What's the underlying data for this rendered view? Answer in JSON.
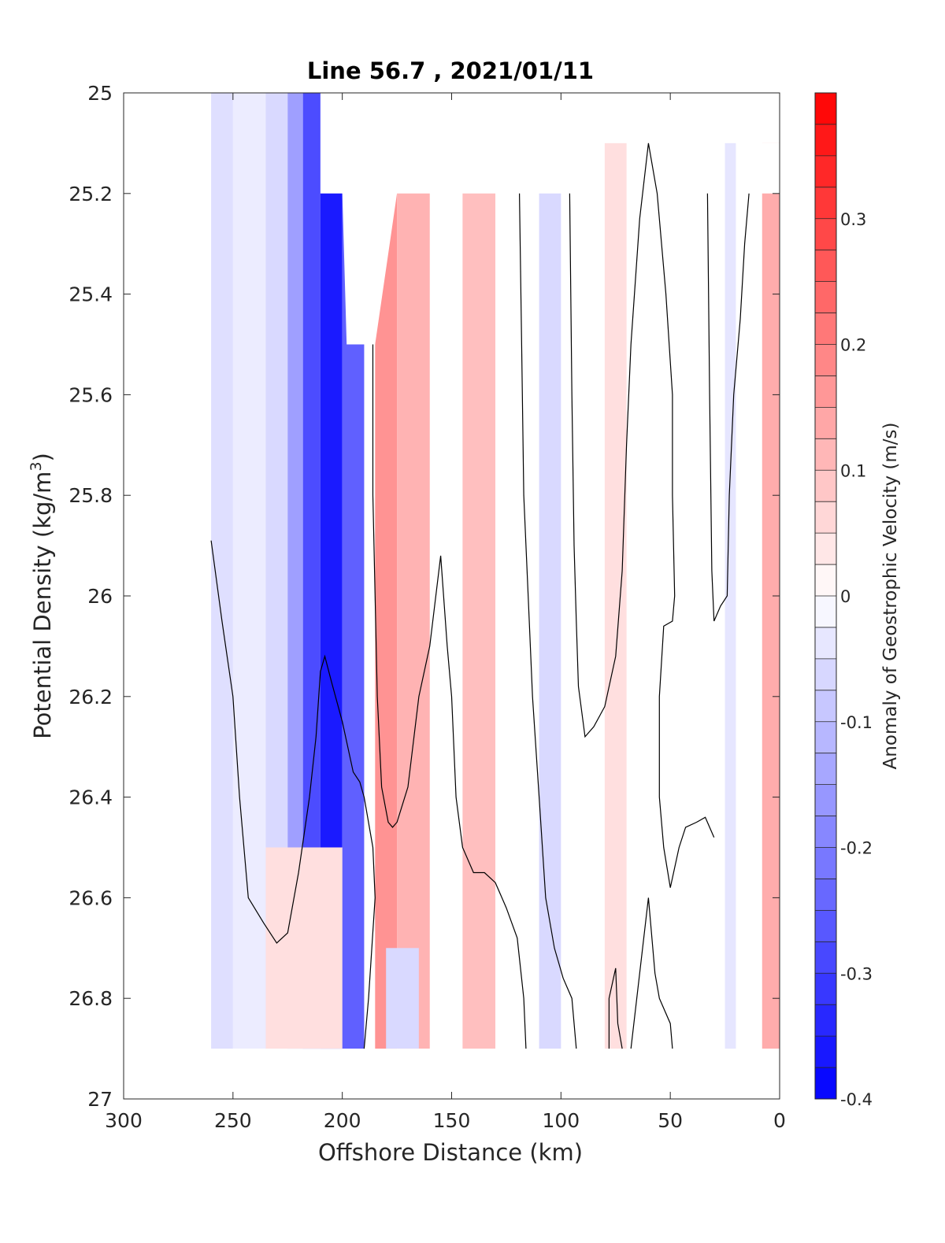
{
  "chart_data": {
    "type": "contour",
    "title": "Line 56.7 , 2021/01/11",
    "xlabel": "Offshore Distance (km)",
    "ylabel": "Potential Density (kg/m",
    "ylabel_sup": "3",
    "ylabel_close": ")",
    "colorbar_label": "Anomaly of Geostrophic Velocity (m/s)",
    "xlim": [
      300,
      0
    ],
    "ylim": [
      25,
      27
    ],
    "y_reversed": true,
    "x_reversed": true,
    "grid": false,
    "x_ticks": [
      300,
      250,
      200,
      150,
      100,
      50,
      0
    ],
    "x_tick_labels": [
      "300",
      "250",
      "200",
      "150",
      "100",
      "50",
      "0"
    ],
    "y_ticks": [
      25,
      25.2,
      25.4,
      25.6,
      25.8,
      26,
      26.2,
      26.4,
      26.6,
      26.8,
      27
    ],
    "y_tick_labels": [
      "25",
      "25.2",
      "25.4",
      "25.6",
      "25.8",
      "26",
      "26.2",
      "26.4",
      "26.6",
      "26.8",
      "27"
    ],
    "colorbar": {
      "clim": [
        -0.4,
        0.4
      ],
      "step": 0.025,
      "ticks": [
        -0.4,
        -0.3,
        -0.2,
        -0.1,
        0,
        0.1,
        0.2,
        0.3
      ],
      "tick_labels": [
        "-0.4",
        "-0.3",
        "-0.2",
        "-0.1",
        "0",
        "0.1",
        "0.2",
        "0.3"
      ],
      "negative_color": "#0000ff",
      "zero_color": "#ffffff",
      "positive_color": "#ff0000"
    },
    "velocity_bands": [
      {
        "x_range": [
          260,
          250
        ],
        "v": -0.05
      },
      {
        "x_range": [
          250,
          235
        ],
        "v": -0.03
      },
      {
        "x_range": [
          235,
          225
        ],
        "v": -0.06
      },
      {
        "x_range": [
          225,
          218
        ],
        "v": -0.15
      },
      {
        "x_range": [
          218,
          210
        ],
        "v": -0.28
      },
      {
        "x_range": [
          210,
          200
        ],
        "v": -0.36
      },
      {
        "x_range": [
          200,
          190
        ],
        "v": -0.25
      },
      {
        "x_range": [
          185,
          175
        ],
        "v": 0.17
      },
      {
        "x_range": [
          175,
          160
        ],
        "v": 0.12
      },
      {
        "x_range": [
          145,
          130
        ],
        "v": 0.1
      },
      {
        "x_range": [
          110,
          100
        ],
        "v": -0.06
      },
      {
        "x_range": [
          80,
          70
        ],
        "v": 0.05
      },
      {
        "x_range": [
          25,
          20
        ],
        "v": -0.04
      },
      {
        "x_range": [
          8,
          0
        ],
        "v": 0.13
      },
      {
        "x_range": [
          235,
          200
        ],
        "v": 0.05,
        "y_range": [
          26.5,
          26.9
        ]
      },
      {
        "x_range": [
          180,
          165
        ],
        "v": -0.06,
        "y_range": [
          26.7,
          26.9
        ]
      }
    ],
    "zero_contours": [
      [
        [
          260,
          25.89
        ],
        [
          255,
          26.05
        ],
        [
          250,
          26.2
        ],
        [
          247,
          26.4
        ],
        [
          243,
          26.6
        ],
        [
          236,
          26.65
        ],
        [
          230,
          26.69
        ],
        [
          225,
          26.67
        ],
        [
          220,
          26.55
        ],
        [
          215,
          26.4
        ],
        [
          212,
          26.28
        ],
        [
          210,
          26.15
        ],
        [
          208,
          26.12
        ],
        [
          205,
          26.17
        ],
        [
          200,
          26.25
        ],
        [
          195,
          26.35
        ],
        [
          192,
          26.37
        ],
        [
          190,
          26.4
        ],
        [
          186,
          26.5
        ],
        [
          185,
          26.6
        ],
        [
          188,
          26.8
        ],
        [
          190,
          26.9
        ]
      ],
      [
        [
          186,
          25.5
        ],
        [
          186,
          25.8
        ],
        [
          185,
          26.0
        ],
        [
          184,
          26.2
        ],
        [
          182,
          26.38
        ],
        [
          179,
          26.45
        ],
        [
          177,
          26.46
        ],
        [
          175,
          26.45
        ],
        [
          170,
          26.38
        ],
        [
          165,
          26.2
        ],
        [
          160,
          26.1
        ],
        [
          155,
          25.92
        ],
        [
          152,
          26.1
        ],
        [
          150,
          26.2
        ],
        [
          148,
          26.4
        ],
        [
          145,
          26.5
        ],
        [
          140,
          26.55
        ],
        [
          135,
          26.55
        ],
        [
          130,
          26.57
        ],
        [
          125,
          26.62
        ],
        [
          120,
          26.68
        ],
        [
          117,
          26.8
        ],
        [
          116,
          26.9
        ]
      ],
      [
        [
          119,
          25.2
        ],
        [
          118,
          25.5
        ],
        [
          117,
          25.8
        ],
        [
          115,
          26.0
        ],
        [
          113,
          26.2
        ],
        [
          110,
          26.4
        ],
        [
          107,
          26.6
        ],
        [
          103,
          26.7
        ],
        [
          99,
          26.76
        ],
        [
          95,
          26.8
        ],
        [
          93,
          26.9
        ]
      ],
      [
        [
          96,
          25.2
        ],
        [
          95,
          25.6
        ],
        [
          94,
          25.9
        ],
        [
          93,
          26.05
        ],
        [
          92,
          26.18
        ],
        [
          89,
          26.28
        ],
        [
          85,
          26.26
        ],
        [
          80,
          26.22
        ],
        [
          75,
          26.12
        ],
        [
          72,
          25.95
        ],
        [
          70,
          25.7
        ],
        [
          68,
          25.5
        ],
        [
          64,
          25.25
        ],
        [
          60,
          25.1
        ],
        [
          56,
          25.2
        ],
        [
          52,
          25.4
        ],
        [
          49,
          25.6
        ],
        [
          49,
          25.8
        ],
        [
          48,
          26.0
        ],
        [
          49,
          26.05
        ],
        [
          53,
          26.06
        ],
        [
          55,
          26.2
        ],
        [
          55,
          26.4
        ],
        [
          53,
          26.5
        ],
        [
          50,
          26.58
        ],
        [
          46,
          26.5
        ],
        [
          43,
          26.46
        ],
        [
          38,
          26.45
        ],
        [
          34,
          26.44
        ],
        [
          30,
          26.48
        ]
      ],
      [
        [
          33,
          25.2
        ],
        [
          32,
          25.6
        ],
        [
          31,
          25.95
        ],
        [
          30,
          26.05
        ],
        [
          27,
          26.02
        ],
        [
          24,
          26.0
        ],
        [
          23,
          25.8
        ],
        [
          21,
          25.6
        ],
        [
          18,
          25.45
        ],
        [
          16,
          25.3
        ],
        [
          14,
          25.2
        ]
      ],
      [
        [
          78,
          26.9
        ],
        [
          78,
          26.8
        ],
        [
          75,
          26.74
        ],
        [
          74,
          26.85
        ],
        [
          72,
          26.9
        ]
      ],
      [
        [
          68,
          26.9
        ],
        [
          64,
          26.75
        ],
        [
          60,
          26.6
        ],
        [
          57,
          26.75
        ],
        [
          55,
          26.8
        ],
        [
          50,
          26.85
        ],
        [
          49,
          26.9
        ]
      ]
    ],
    "masked_regions": [
      {
        "x_range": [
          300,
          260
        ],
        "y_range": [
          25,
          27
        ]
      },
      {
        "x_range": [
          0,
          300
        ],
        "y_range": [
          26.9,
          27
        ]
      },
      {
        "polygon": [
          [
            260,
            25
          ],
          [
            210,
            25
          ],
          [
            210,
            25.2
          ],
          [
            200,
            25.2
          ],
          [
            198,
            25.5
          ],
          [
            185,
            25.5
          ],
          [
            175,
            25.2
          ],
          [
            95,
            25.2
          ],
          [
            90,
            25.1
          ],
          [
            0,
            25.1
          ],
          [
            0,
            25
          ],
          [
            260,
            25
          ]
        ]
      },
      {
        "polygon": [
          [
            0,
            25.1
          ],
          [
            17,
            25.1
          ],
          [
            17,
            25.2
          ],
          [
            0,
            25.2
          ]
        ]
      }
    ]
  }
}
